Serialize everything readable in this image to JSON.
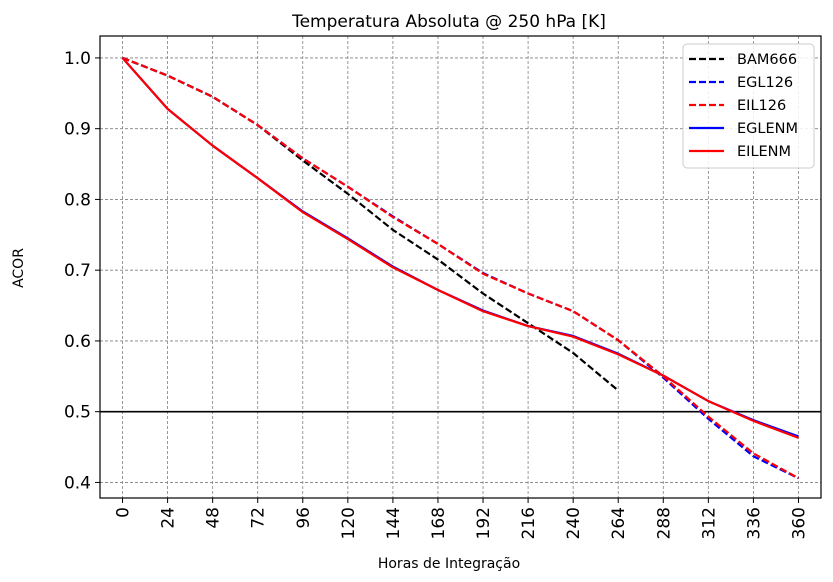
{
  "chart_data": {
    "type": "line",
    "title": "Temperatura Absoluta @ 250 hPa [K]",
    "xlabel": "Horas de Integração",
    "ylabel": "ACOR",
    "x": [
      0,
      24,
      48,
      72,
      96,
      120,
      144,
      168,
      192,
      216,
      240,
      264,
      288,
      312,
      336,
      360
    ],
    "xticks": [
      "0",
      "24",
      "48",
      "72",
      "96",
      "120",
      "144",
      "168",
      "192",
      "216",
      "240",
      "264",
      "288",
      "312",
      "336",
      "360"
    ],
    "yticks": [
      "0.4",
      "0.5",
      "0.6",
      "0.7",
      "0.8",
      "0.9",
      "1.0"
    ],
    "ytick_values": [
      0.4,
      0.5,
      0.6,
      0.7,
      0.8,
      0.9,
      1.0
    ],
    "xlim": [
      -12,
      372
    ],
    "ylim": [
      0.378,
      1.031
    ],
    "grid": true,
    "reference_line": {
      "y": 0.5,
      "color": "#000000"
    },
    "legend_position": "top-right",
    "series": [
      {
        "name": "BAM666",
        "color": "#000000",
        "style": "dashed",
        "values": [
          1.0,
          0.975,
          0.945,
          0.905,
          0.855,
          0.808,
          0.757,
          0.715,
          0.667,
          0.625,
          0.583,
          0.53,
          null,
          null,
          null,
          null
        ]
      },
      {
        "name": "EGL126",
        "color": "#0000ff",
        "style": "dashed",
        "values": [
          1.0,
          0.975,
          0.945,
          0.905,
          0.858,
          0.818,
          0.776,
          0.737,
          0.696,
          0.667,
          0.642,
          0.601,
          0.548,
          0.49,
          0.437,
          0.406
        ]
      },
      {
        "name": "EIL126",
        "color": "#ff0000",
        "style": "dashed",
        "values": [
          1.0,
          0.975,
          0.945,
          0.905,
          0.858,
          0.818,
          0.775,
          0.737,
          0.695,
          0.667,
          0.642,
          0.601,
          0.55,
          0.493,
          0.441,
          0.406
        ]
      },
      {
        "name": "EGLENM",
        "color": "#0000ff",
        "style": "solid",
        "values": [
          1.0,
          0.928,
          0.876,
          0.83,
          0.783,
          0.745,
          0.705,
          0.672,
          0.643,
          0.621,
          0.607,
          0.582,
          0.551,
          0.515,
          0.488,
          0.465
        ]
      },
      {
        "name": "EILENM",
        "color": "#ff0000",
        "style": "solid",
        "values": [
          1.0,
          0.928,
          0.876,
          0.83,
          0.782,
          0.744,
          0.704,
          0.672,
          0.642,
          0.621,
          0.606,
          0.581,
          0.551,
          0.515,
          0.487,
          0.463
        ]
      }
    ]
  }
}
